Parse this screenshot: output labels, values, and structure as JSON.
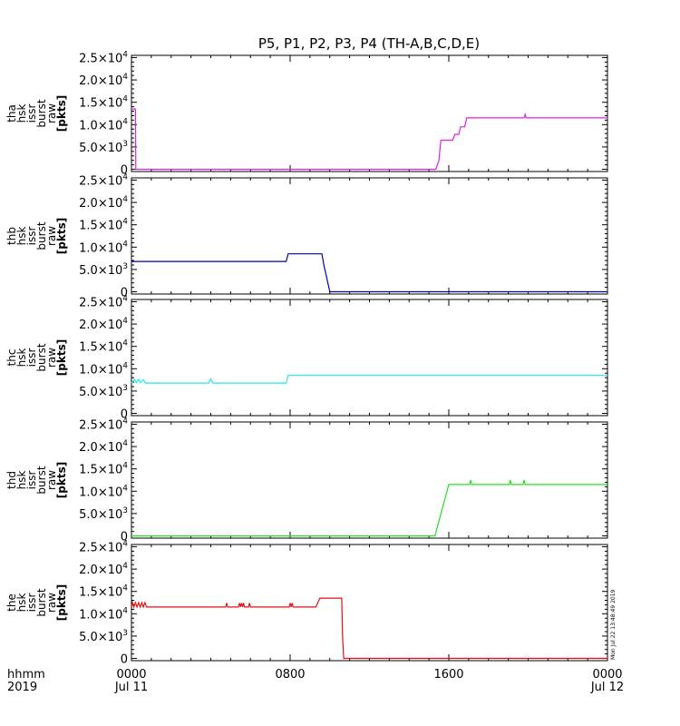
{
  "title": "P5, P1, P2, P3, P4 (TH-A,B,C,D,E)",
  "stamp": "Mon Jul 22 13:48:49 2019",
  "time_axis": {
    "label_lines": [
      "hhmm",
      "2019"
    ],
    "ticks": [
      {
        "hour": 0,
        "line1": "0000",
        "line2": "Jul 11"
      },
      {
        "hour": 8,
        "line1": "0800",
        "line2": ""
      },
      {
        "hour": 16,
        "line1": "1600",
        "line2": ""
      },
      {
        "hour": 24,
        "line1": "0000",
        "line2": "Jul 12"
      }
    ]
  },
  "chart_data": [
    {
      "type": "line",
      "probe": "tha",
      "ylabel_lines": [
        "tha",
        "hsk",
        "issr",
        "burst",
        "raw",
        "[pkts]"
      ],
      "color": "#e020e0",
      "xlim": [
        0,
        24
      ],
      "ylim": [
        -500,
        25500
      ],
      "y_ticks": [
        {
          "v": 0,
          "m": "0",
          "e": ""
        },
        {
          "v": 5000,
          "m": "5.0×10",
          "e": "3"
        },
        {
          "v": 10000,
          "m": "1.0×10",
          "e": "4"
        },
        {
          "v": 15000,
          "m": "1.5×10",
          "e": "4"
        },
        {
          "v": 20000,
          "m": "2.0×10",
          "e": "4"
        },
        {
          "v": 25000,
          "m": "2.5×10",
          "e": "4"
        }
      ],
      "points": [
        [
          0,
          13500
        ],
        [
          0.2,
          13500
        ],
        [
          0.22,
          0
        ],
        [
          15.35,
          0
        ],
        [
          15.5,
          2000
        ],
        [
          15.6,
          6500
        ],
        [
          16.2,
          6500
        ],
        [
          16.3,
          7800
        ],
        [
          16.5,
          7800
        ],
        [
          16.6,
          9500
        ],
        [
          16.8,
          9500
        ],
        [
          16.9,
          11500
        ],
        [
          19.8,
          11500
        ],
        [
          19.85,
          12300
        ],
        [
          19.9,
          11500
        ],
        [
          24,
          11500
        ]
      ]
    },
    {
      "type": "line",
      "probe": "thb",
      "ylabel_lines": [
        "thb",
        "hsk",
        "issr",
        "burst",
        "raw",
        "[pkts]"
      ],
      "color": "#0000b0",
      "xlim": [
        0,
        24
      ],
      "ylim": [
        -500,
        25500
      ],
      "y_ticks": [
        {
          "v": 0,
          "m": "0",
          "e": ""
        },
        {
          "v": 5000,
          "m": "5.0×10",
          "e": "3"
        },
        {
          "v": 10000,
          "m": "1.0×10",
          "e": "4"
        },
        {
          "v": 15000,
          "m": "1.5×10",
          "e": "4"
        },
        {
          "v": 20000,
          "m": "2.0×10",
          "e": "4"
        },
        {
          "v": 25000,
          "m": "2.5×10",
          "e": "4"
        }
      ],
      "points": [
        [
          0,
          6800
        ],
        [
          7.8,
          6800
        ],
        [
          7.9,
          8500
        ],
        [
          9.6,
          8500
        ],
        [
          9.7,
          6000
        ],
        [
          9.8,
          4000
        ],
        [
          9.9,
          2000
        ],
        [
          10.0,
          0
        ],
        [
          24,
          0
        ]
      ]
    },
    {
      "type": "line",
      "probe": "thc",
      "ylabel_lines": [
        "thc",
        "hsk",
        "issr",
        "burst",
        "raw",
        "[pkts]"
      ],
      "color": "#20e8e8",
      "xlim": [
        0,
        24
      ],
      "ylim": [
        -500,
        25500
      ],
      "y_ticks": [
        {
          "v": 0,
          "m": "0",
          "e": ""
        },
        {
          "v": 5000,
          "m": "5.0×10",
          "e": "3"
        },
        {
          "v": 10000,
          "m": "1.0×10",
          "e": "4"
        },
        {
          "v": 15000,
          "m": "1.5×10",
          "e": "4"
        },
        {
          "v": 20000,
          "m": "2.0×10",
          "e": "4"
        },
        {
          "v": 25000,
          "m": "2.5×10",
          "e": "4"
        }
      ],
      "points": [
        [
          0,
          6800
        ],
        [
          0.15,
          7600
        ],
        [
          0.25,
          6900
        ],
        [
          0.35,
          7600
        ],
        [
          0.45,
          6900
        ],
        [
          0.6,
          7500
        ],
        [
          0.7,
          6800
        ],
        [
          3.9,
          6800
        ],
        [
          4.0,
          7700
        ],
        [
          4.1,
          6800
        ],
        [
          7.8,
          6800
        ],
        [
          7.9,
          8500
        ],
        [
          24,
          8500
        ]
      ]
    },
    {
      "type": "line",
      "probe": "thd",
      "ylabel_lines": [
        "thd",
        "hsk",
        "issr",
        "burst",
        "raw",
        "[pkts]"
      ],
      "color": "#20e020",
      "xlim": [
        0,
        24
      ],
      "ylim": [
        -500,
        25500
      ],
      "y_ticks": [
        {
          "v": 0,
          "m": "0",
          "e": ""
        },
        {
          "v": 5000,
          "m": "5.0×10",
          "e": "3"
        },
        {
          "v": 10000,
          "m": "1.0×10",
          "e": "4"
        },
        {
          "v": 15000,
          "m": "1.5×10",
          "e": "4"
        },
        {
          "v": 20000,
          "m": "2.0×10",
          "e": "4"
        },
        {
          "v": 25000,
          "m": "2.5×10",
          "e": "4"
        }
      ],
      "points": [
        [
          0,
          0
        ],
        [
          15.3,
          0
        ],
        [
          16.0,
          11500
        ],
        [
          17.05,
          11500
        ],
        [
          17.1,
          12500
        ],
        [
          17.15,
          11500
        ],
        [
          19.05,
          11500
        ],
        [
          19.1,
          12500
        ],
        [
          19.15,
          11500
        ],
        [
          19.75,
          11500
        ],
        [
          19.8,
          12500
        ],
        [
          19.85,
          11500
        ],
        [
          24,
          11500
        ]
      ]
    },
    {
      "type": "line",
      "probe": "the",
      "ylabel_lines": [
        "the",
        "hsk",
        "issr",
        "burst",
        "raw",
        "[pkts]"
      ],
      "color": "#e01010",
      "xlim": [
        0,
        24
      ],
      "ylim": [
        -500,
        25500
      ],
      "y_ticks": [
        {
          "v": 0,
          "m": "0",
          "e": ""
        },
        {
          "v": 5000,
          "m": "5.0×10",
          "e": "3"
        },
        {
          "v": 10000,
          "m": "1.0×10",
          "e": "4"
        },
        {
          "v": 15000,
          "m": "1.5×10",
          "e": "4"
        },
        {
          "v": 20000,
          "m": "2.0×10",
          "e": "4"
        },
        {
          "v": 25000,
          "m": "2.5×10",
          "e": "4"
        }
      ],
      "points": [
        [
          0,
          11500
        ],
        [
          0.05,
          12500
        ],
        [
          0.12,
          11500
        ],
        [
          0.2,
          12500
        ],
        [
          0.28,
          11500
        ],
        [
          0.36,
          12500
        ],
        [
          0.44,
          11500
        ],
        [
          0.52,
          12500
        ],
        [
          0.6,
          11500
        ],
        [
          0.68,
          12500
        ],
        [
          0.76,
          11500
        ],
        [
          4.75,
          11500
        ],
        [
          4.8,
          12400
        ],
        [
          4.85,
          11500
        ],
        [
          5.4,
          11500
        ],
        [
          5.45,
          12400
        ],
        [
          5.5,
          11500
        ],
        [
          5.55,
          12400
        ],
        [
          5.6,
          11500
        ],
        [
          5.65,
          12400
        ],
        [
          5.7,
          11500
        ],
        [
          5.9,
          11500
        ],
        [
          5.95,
          12400
        ],
        [
          6.0,
          11500
        ],
        [
          7.95,
          11500
        ],
        [
          8.0,
          12400
        ],
        [
          8.05,
          11500
        ],
        [
          8.1,
          12400
        ],
        [
          8.15,
          11500
        ],
        [
          9.3,
          11500
        ],
        [
          9.5,
          13500
        ],
        [
          10.6,
          13500
        ],
        [
          10.65,
          4000
        ],
        [
          10.7,
          0
        ],
        [
          24,
          0
        ]
      ]
    }
  ]
}
